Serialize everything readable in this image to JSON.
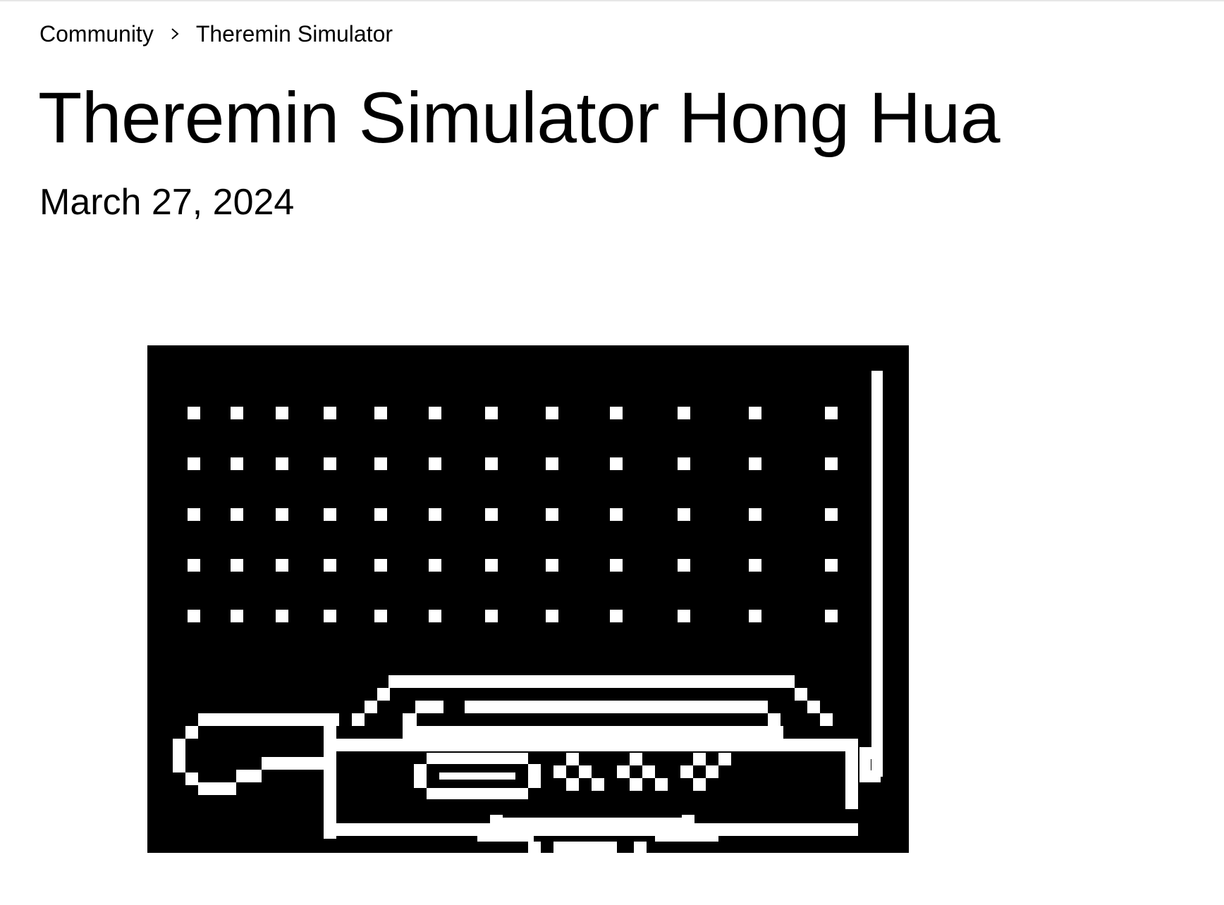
{
  "breadcrumb": {
    "items": [
      {
        "label": "Community"
      },
      {
        "label": "Theremin Simulator"
      }
    ],
    "separator_icon": "chevron-right-icon"
  },
  "article": {
    "title": "Theremin Simulator Hong Hua",
    "date": "March 27, 2024"
  },
  "illustration": {
    "subject": "pixel-art theremin on black background",
    "background_color": "#000000",
    "foreground_color": "#ffffff",
    "dot_grid": {
      "rows": 5,
      "columns": 12
    }
  }
}
